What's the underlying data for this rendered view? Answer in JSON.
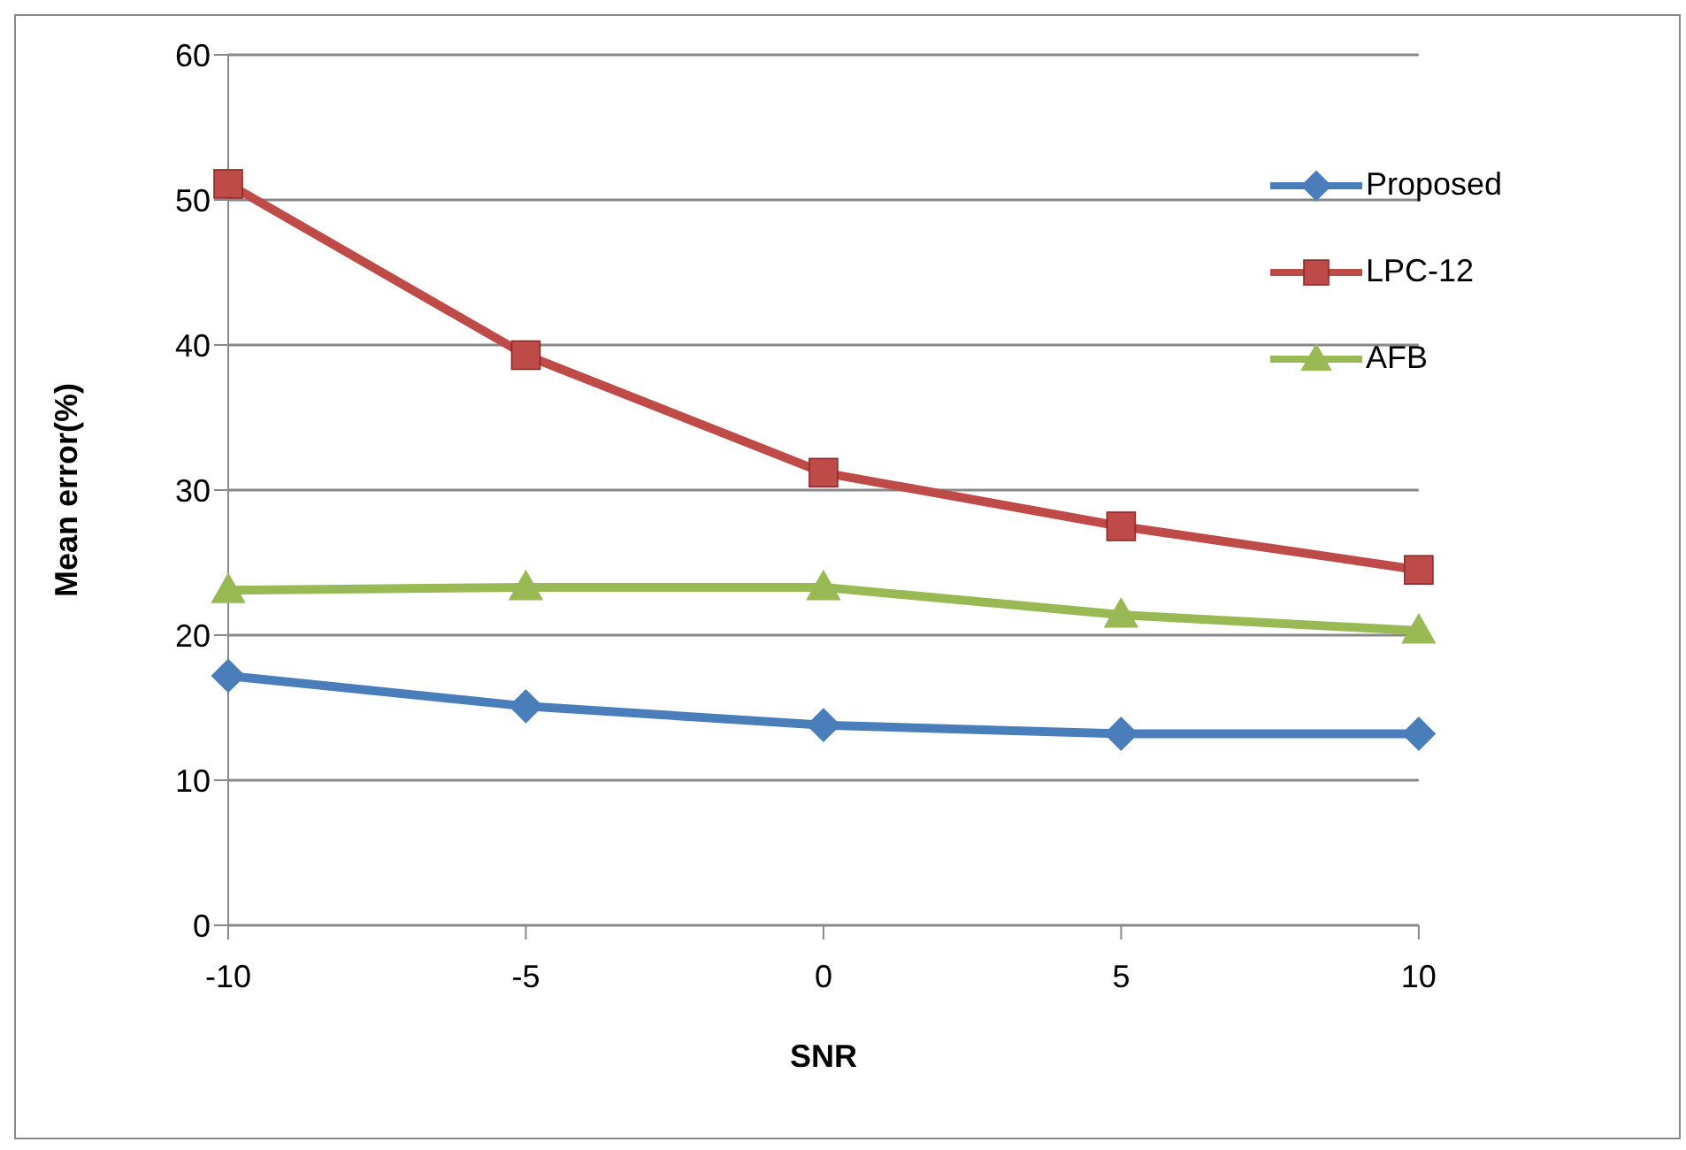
{
  "chart_data": {
    "type": "line",
    "xlabel": "SNR",
    "ylabel": "Mean error(%)",
    "categories": [
      "-10",
      "-5",
      "0",
      "5",
      "10"
    ],
    "ylim": [
      0,
      60
    ],
    "yticks": [
      0,
      10,
      20,
      30,
      40,
      50,
      60
    ],
    "grid": "y",
    "legend": "top right",
    "line_style": "solid",
    "series": [
      {
        "name": "Proposed",
        "color": "#4a7ebb",
        "marker": "diamond",
        "values": [
          17.2,
          15.1,
          13.8,
          13.2,
          13.2
        ]
      },
      {
        "name": "LPC-12",
        "color": "#be4b48",
        "marker": "square",
        "values": [
          51.1,
          39.3,
          31.2,
          27.5,
          24.5
        ]
      },
      {
        "name": "AFB",
        "color": "#98b954",
        "marker": "triangle",
        "values": [
          23.1,
          23.3,
          23.3,
          21.4,
          20.3
        ]
      }
    ]
  }
}
